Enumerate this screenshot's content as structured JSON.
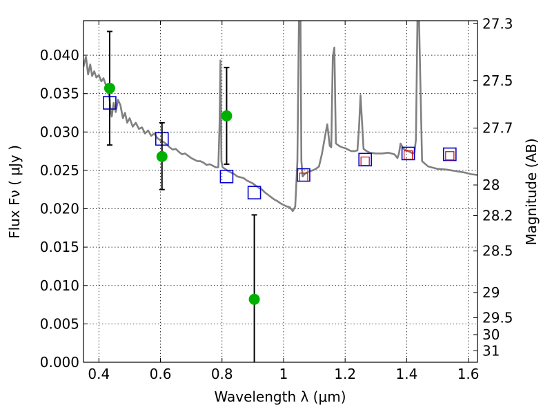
{
  "chart_data": {
    "type": "line",
    "xlabel": "Wavelength  λ (μm)",
    "ylabel": "Flux  Fν  ( μJy )",
    "ylabel_right": "Magnitude (AB)",
    "xlim": [
      0.35,
      1.63
    ],
    "ylim": [
      0.0,
      0.0445
    ],
    "grid": true,
    "x_ticks": [
      0.4,
      0.6,
      0.8,
      1.0,
      1.2,
      1.4,
      1.6
    ],
    "x_tick_labels": [
      "0.4",
      "0.6",
      "0.8",
      "1",
      "1.2",
      "1.4",
      "1.6"
    ],
    "y_ticks": [
      0.0,
      0.005,
      0.01,
      0.015,
      0.02,
      0.025,
      0.03,
      0.035,
      0.04
    ],
    "y_tick_labels": [
      "0.000",
      "0.005",
      "0.010",
      "0.015",
      "0.020",
      "0.025",
      "0.030",
      "0.035",
      "0.040"
    ],
    "right_ticks": [
      {
        "label": "27.3",
        "flux": 0.0441
      },
      {
        "label": "27.5",
        "flux": 0.0367
      },
      {
        "label": "27.7",
        "flux": 0.0305
      },
      {
        "label": "28",
        "flux": 0.0231
      },
      {
        "label": "28.2",
        "flux": 0.0191
      },
      {
        "label": "28.5",
        "flux": 0.0145
      },
      {
        "label": "29",
        "flux": 0.0091
      },
      {
        "label": "29.5",
        "flux": 0.0058
      },
      {
        "label": "30",
        "flux": 0.0036
      },
      {
        "label": "31",
        "flux": 0.0015
      }
    ],
    "series": [
      {
        "style": "line",
        "color": "#808080",
        "x": [
          0.35,
          0.358,
          0.365,
          0.372,
          0.378,
          0.385,
          0.392,
          0.4,
          0.408,
          0.415,
          0.422,
          0.428,
          0.434,
          0.438,
          0.442,
          0.448,
          0.455,
          0.462,
          0.47,
          0.478,
          0.485,
          0.492,
          0.5,
          0.51,
          0.52,
          0.53,
          0.54,
          0.55,
          0.56,
          0.57,
          0.58,
          0.59,
          0.6,
          0.61,
          0.62,
          0.63,
          0.64,
          0.65,
          0.66,
          0.67,
          0.68,
          0.69,
          0.7,
          0.71,
          0.72,
          0.73,
          0.74,
          0.75,
          0.76,
          0.77,
          0.78,
          0.788,
          0.792,
          0.795,
          0.798,
          0.802,
          0.81,
          0.82,
          0.83,
          0.84,
          0.85,
          0.86,
          0.87,
          0.88,
          0.89,
          0.9,
          0.91,
          0.92,
          0.93,
          0.94,
          0.95,
          0.96,
          0.97,
          0.98,
          0.99,
          1.0,
          1.01,
          1.02,
          1.03,
          1.038,
          1.045,
          1.05,
          1.055,
          1.058,
          1.062,
          1.068,
          1.075,
          1.085,
          1.095,
          1.105,
          1.115,
          1.125,
          1.135,
          1.142,
          1.15,
          1.155,
          1.16,
          1.165,
          1.17,
          1.18,
          1.19,
          1.2,
          1.205,
          1.21,
          1.215,
          1.22,
          1.23,
          1.24,
          1.245,
          1.25,
          1.26,
          1.27,
          1.28,
          1.3,
          1.32,
          1.34,
          1.36,
          1.37,
          1.375,
          1.38,
          1.39,
          1.4,
          1.41,
          1.42,
          1.425,
          1.43,
          1.435,
          1.44,
          1.45,
          1.47,
          1.5,
          1.53,
          1.56,
          1.59,
          1.61,
          1.63
        ],
        "y": [
          0.0385,
          0.0398,
          0.0375,
          0.0388,
          0.0373,
          0.0379,
          0.0371,
          0.0374,
          0.0366,
          0.037,
          0.0362,
          0.0352,
          0.0347,
          0.0328,
          0.032,
          0.0338,
          0.0326,
          0.0342,
          0.0335,
          0.0318,
          0.0325,
          0.0312,
          0.0318,
          0.0307,
          0.0312,
          0.0304,
          0.0306,
          0.0298,
          0.0302,
          0.0295,
          0.0298,
          0.0292,
          0.0289,
          0.0287,
          0.0284,
          0.028,
          0.0277,
          0.0278,
          0.0274,
          0.0271,
          0.0272,
          0.0269,
          0.0266,
          0.0264,
          0.0262,
          0.0262,
          0.026,
          0.0257,
          0.0258,
          0.0256,
          0.0254,
          0.0254,
          0.031,
          0.0393,
          0.0262,
          0.0254,
          0.0252,
          0.0249,
          0.0247,
          0.0245,
          0.0242,
          0.0241,
          0.024,
          0.0237,
          0.0235,
          0.0233,
          0.023,
          0.0227,
          0.0225,
          0.0221,
          0.0218,
          0.0215,
          0.0212,
          0.021,
          0.0207,
          0.0205,
          0.0203,
          0.0202,
          0.0197,
          0.0203,
          0.0262,
          0.045,
          0.0448,
          0.0262,
          0.0242,
          0.0245,
          0.0247,
          0.0249,
          0.025,
          0.0252,
          0.0255,
          0.0272,
          0.0295,
          0.031,
          0.0282,
          0.028,
          0.0398,
          0.041,
          0.0285,
          0.0282,
          0.028,
          0.0279,
          0.0278,
          0.0277,
          0.0276,
          0.0275,
          0.0275,
          0.0276,
          0.0305,
          0.0348,
          0.0278,
          0.0275,
          0.0273,
          0.0272,
          0.0272,
          0.0273,
          0.0271,
          0.0266,
          0.0272,
          0.0285,
          0.0278,
          0.0276,
          0.0274,
          0.0272,
          0.0273,
          0.029,
          0.0448,
          0.045,
          0.0262,
          0.0255,
          0.0252,
          0.0251,
          0.0249,
          0.0247,
          0.0245,
          0.0244
        ]
      },
      {
        "style": "blue-squares",
        "color": "#0000cc",
        "x": [
          0.435,
          0.605,
          0.815,
          0.905,
          1.065,
          1.265,
          1.405,
          1.54
        ],
        "y": [
          0.0338,
          0.0291,
          0.0242,
          0.0221,
          0.0244,
          0.0264,
          0.0272,
          0.0271
        ]
      },
      {
        "style": "red-squares",
        "color": "#cc0000",
        "x": [
          1.065,
          1.265,
          1.405,
          1.54
        ],
        "y": [
          0.0241,
          0.0262,
          0.027,
          0.0269
        ]
      },
      {
        "style": "green-points",
        "color": "#00b000",
        "x": [
          0.435,
          0.605,
          0.815,
          0.905
        ],
        "y": [
          0.0357,
          0.0268,
          0.0321,
          0.0082
        ],
        "y_err_low": [
          0.0283,
          0.0225,
          0.0258,
          0.0
        ],
        "y_err_high": [
          0.0431,
          0.0312,
          0.0384,
          0.0192
        ]
      }
    ]
  }
}
